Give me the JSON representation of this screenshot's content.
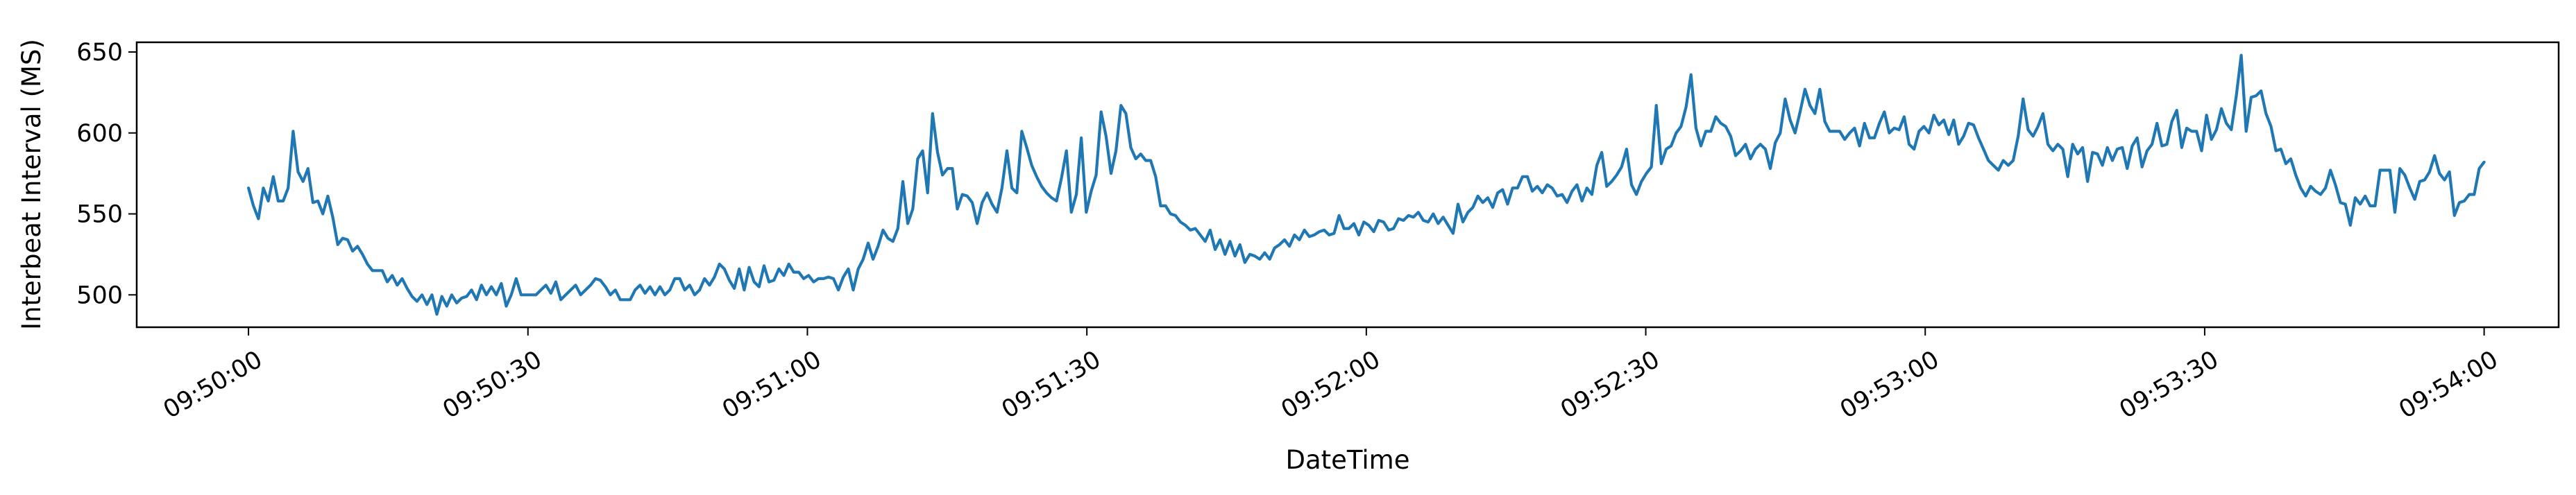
{
  "chart_data": {
    "type": "line",
    "xlabel": "DateTime",
    "ylabel": "Interbeat Interval (MS)",
    "x_ticks": [
      "09:50:00",
      "09:50:30",
      "09:51:00",
      "09:51:30",
      "09:52:00",
      "09:52:30",
      "09:53:00",
      "09:53:30",
      "09:54:00"
    ],
    "y_ticks": [
      500,
      550,
      600,
      650
    ],
    "xlim": [
      "09:49:48",
      "09:54:08"
    ],
    "ylim": [
      480,
      656
    ],
    "grid": false,
    "series_color": "#1f77b4",
    "series": [
      {
        "x_start": "09:50:00",
        "x_end": "09:54:00",
        "values": [
          566,
          555,
          547,
          566,
          558,
          573,
          558,
          558,
          566,
          601,
          576,
          570,
          578,
          557,
          558,
          550,
          561,
          548,
          531,
          535,
          534,
          527,
          530,
          525,
          519,
          515,
          515,
          515,
          508,
          512,
          506,
          510,
          504,
          499,
          496,
          500,
          494,
          500,
          488,
          499,
          493,
          500,
          495,
          498,
          499,
          503,
          497,
          506,
          500,
          505,
          500,
          507,
          493,
          500,
          510,
          500,
          500,
          500,
          500,
          503,
          506,
          501,
          508,
          497,
          500,
          503,
          506,
          500,
          503,
          506,
          510,
          509,
          505,
          500,
          503,
          497,
          497,
          497,
          503,
          506,
          501,
          505,
          500,
          505,
          500,
          503,
          510,
          510,
          503,
          506,
          500,
          503,
          510,
          506,
          511,
          519,
          516,
          509,
          504,
          516,
          503,
          517,
          508,
          505,
          518,
          508,
          509,
          516,
          512,
          519,
          514,
          514,
          510,
          512,
          508,
          510,
          510,
          511,
          510,
          503,
          511,
          516,
          503,
          516,
          522,
          532,
          522,
          530,
          540,
          535,
          533,
          541,
          570,
          544,
          553,
          584,
          589,
          563,
          612,
          588,
          574,
          578,
          578,
          553,
          562,
          561,
          557,
          544,
          557,
          563,
          556,
          551,
          566,
          589,
          566,
          563,
          601,
          591,
          580,
          573,
          567,
          563,
          560,
          558,
          572,
          589,
          551,
          562,
          597,
          551,
          564,
          574,
          613,
          598,
          575,
          589,
          617,
          612,
          591,
          584,
          587,
          583,
          583,
          573,
          555,
          555,
          550,
          549,
          545,
          543,
          540,
          541,
          537,
          533,
          540,
          528,
          534,
          525,
          533,
          524,
          531,
          520,
          525,
          524,
          522,
          526,
          522,
          529,
          531,
          534,
          530,
          537,
          534,
          540,
          536,
          537,
          539,
          540,
          537,
          538,
          549,
          541,
          541,
          544,
          537,
          545,
          543,
          539,
          546,
          545,
          540,
          541,
          547,
          546,
          549,
          548,
          551,
          546,
          545,
          550,
          544,
          548,
          543,
          538,
          556,
          545,
          551,
          554,
          561,
          557,
          560,
          554,
          563,
          565,
          556,
          566,
          566,
          573,
          573,
          564,
          567,
          563,
          568,
          566,
          561,
          562,
          557,
          564,
          568,
          558,
          566,
          562,
          580,
          588,
          567,
          570,
          574,
          579,
          590,
          568,
          562,
          570,
          575,
          579,
          617,
          581,
          590,
          592,
          600,
          604,
          616,
          636,
          603,
          592,
          601,
          601,
          610,
          606,
          604,
          598,
          586,
          589,
          593,
          584,
          590,
          593,
          590,
          578,
          594,
          600,
          621,
          608,
          600,
          613,
          627,
          617,
          612,
          627,
          607,
          601,
          601,
          601,
          596,
          600,
          603,
          592,
          606,
          597,
          597,
          606,
          613,
          600,
          603,
          602,
          610,
          593,
          590,
          601,
          604,
          600,
          611,
          605,
          608,
          599,
          608,
          593,
          598,
          606,
          605,
          597,
          590,
          583,
          580,
          577,
          583,
          580,
          583,
          598,
          621,
          602,
          598,
          604,
          612,
          593,
          589,
          593,
          590,
          573,
          593,
          587,
          591,
          570,
          588,
          587,
          580,
          591,
          583,
          590,
          591,
          578,
          592,
          597,
          579,
          589,
          593,
          606,
          592,
          593,
          607,
          614,
          591,
          603,
          601,
          601,
          589,
          611,
          596,
          602,
          615,
          606,
          602,
          623,
          648,
          601,
          622,
          623,
          626,
          612,
          604,
          589,
          590,
          581,
          584,
          574,
          566,
          561,
          567,
          564,
          562,
          566,
          577,
          568,
          557,
          556,
          543,
          560,
          556,
          561,
          555,
          555,
          577,
          577,
          577,
          551,
          578,
          574,
          566,
          559,
          570,
          571,
          576,
          586,
          575,
          571,
          576,
          549,
          557,
          558,
          562,
          562,
          578,
          582
        ]
      }
    ]
  }
}
